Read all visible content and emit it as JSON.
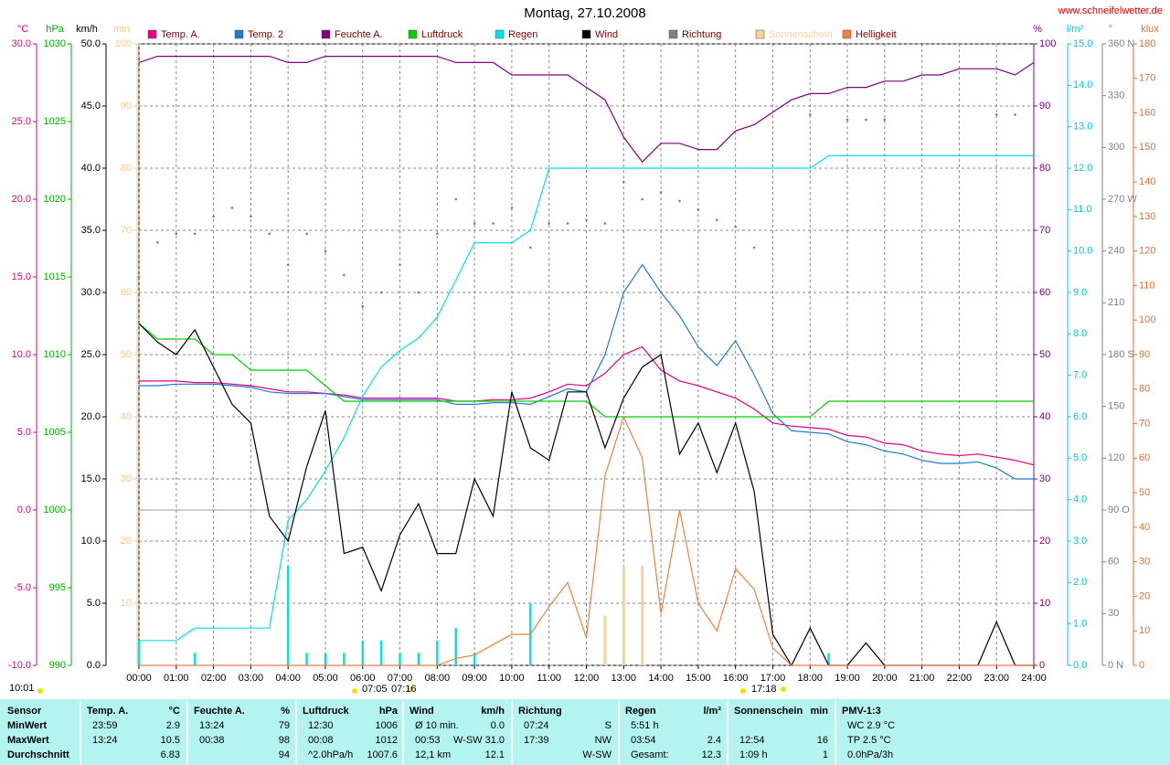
{
  "chart_data": {
    "type": "line",
    "title": "Montag, 27.10.2008",
    "source": "www.schneifelwetter.de",
    "annotations": [
      "10:01",
      "07:05",
      "07:16",
      "17:18"
    ],
    "grid": true,
    "xlim": [
      0,
      24
    ],
    "xticks": [
      {
        "value": 0,
        "label": "00:00"
      },
      {
        "value": 1,
        "label": "01:00"
      },
      {
        "value": 2,
        "label": "02:00"
      },
      {
        "value": 3,
        "label": "03:00"
      },
      {
        "value": 4,
        "label": "04:00"
      },
      {
        "value": 5,
        "label": "05:00"
      },
      {
        "value": 6,
        "label": "06:00"
      },
      {
        "value": 7,
        "label": "07:00"
      },
      {
        "value": 8,
        "label": "08:00"
      },
      {
        "value": 9,
        "label": "09:00"
      },
      {
        "value": 10,
        "label": "10:00"
      },
      {
        "value": 11,
        "label": "11:00"
      },
      {
        "value": 12,
        "label": "12:00"
      },
      {
        "value": 13,
        "label": "13:00"
      },
      {
        "value": 14,
        "label": "14:00"
      },
      {
        "value": 15,
        "label": "15:00"
      },
      {
        "value": 16,
        "label": "16:00"
      },
      {
        "value": 17,
        "label": "17:00"
      },
      {
        "value": 18,
        "label": "18:00"
      },
      {
        "value": 19,
        "label": "19:00"
      },
      {
        "value": 20,
        "label": "20:00"
      },
      {
        "value": 21,
        "label": "21:00"
      },
      {
        "value": 22,
        "label": "22:00"
      },
      {
        "value": 23,
        "label": "23:00"
      },
      {
        "value": 24,
        "label": "24:00"
      }
    ],
    "axes": [
      {
        "unit": "°C",
        "color": "#e6007e",
        "lim": [
          -10,
          30
        ],
        "ticks": [
          {
            "value": -10,
            "label": "-10.0"
          },
          {
            "value": -5,
            "label": "-5.0"
          },
          {
            "value": 0,
            "label": "0.0"
          },
          {
            "value": 5,
            "label": "5.0"
          },
          {
            "value": 10,
            "label": "10.0"
          },
          {
            "value": 15,
            "label": "15.0"
          },
          {
            "value": 20,
            "label": "20.0"
          },
          {
            "value": 25,
            "label": "25.0"
          },
          {
            "value": 30,
            "label": "30.0"
          }
        ]
      },
      {
        "unit": "hPa",
        "color": "#00b000",
        "lim": [
          990,
          1030
        ],
        "ticks": [
          990,
          995,
          1000,
          1005,
          1010,
          1015,
          1020,
          1025,
          1030
        ]
      },
      {
        "unit": "km/h",
        "color": "#000000",
        "lim": [
          0,
          50
        ],
        "ticks": [
          {
            "value": 0,
            "label": "0.0"
          },
          {
            "value": 5,
            "label": "5.0"
          },
          {
            "value": 10,
            "label": "10.0"
          },
          {
            "value": 15,
            "label": "15.0"
          },
          {
            "value": 20,
            "label": "20.0"
          },
          {
            "value": 25,
            "label": "25.0"
          },
          {
            "value": 30,
            "label": "30.0"
          },
          {
            "value": 35,
            "label": "35.0"
          },
          {
            "value": 40,
            "label": "40.0"
          },
          {
            "value": 45,
            "label": "45.0"
          },
          {
            "value": 50,
            "label": "50.0"
          }
        ]
      },
      {
        "unit": "min",
        "color": "#f5c890",
        "lim": [
          0,
          100
        ],
        "ticks": [
          10,
          20,
          30,
          40,
          50,
          60,
          70,
          80,
          90,
          100
        ]
      },
      {
        "unit": "%",
        "color": "#800080",
        "lim": [
          0,
          100
        ],
        "ticks": [
          0,
          10,
          20,
          30,
          40,
          50,
          60,
          70,
          80,
          90,
          100
        ]
      },
      {
        "unit": "l/m²",
        "color": "#00c8d8",
        "lim": [
          0,
          15
        ],
        "ticks": [
          {
            "value": 0,
            "label": "0.0"
          },
          {
            "value": 1,
            "label": "1.0"
          },
          {
            "value": 2,
            "label": "2.0"
          },
          {
            "value": 3,
            "label": "3.0"
          },
          {
            "value": 4,
            "label": "4.0"
          },
          {
            "value": 5,
            "label": "5.0"
          },
          {
            "value": 6,
            "label": "6.0"
          },
          {
            "value": 7,
            "label": "7.0"
          },
          {
            "value": 8,
            "label": "8.0"
          },
          {
            "value": 9,
            "label": "9.0"
          },
          {
            "value": 10,
            "label": "10.0"
          },
          {
            "value": 11,
            "label": "11.0"
          },
          {
            "value": 12,
            "label": "12.0"
          },
          {
            "value": 13,
            "label": "13.0"
          },
          {
            "value": 14,
            "label": "14.0"
          },
          {
            "value": 15,
            "label": "15.0"
          }
        ]
      },
      {
        "unit": "°",
        "color": "#808080",
        "lim": [
          0,
          360
        ],
        "ticks": [
          {
            "value": 0,
            "label": "0 N"
          },
          30,
          60,
          {
            "value": 90,
            "label": "90 O"
          },
          120,
          150,
          {
            "value": 180,
            "label": "180 S"
          },
          210,
          240,
          {
            "value": 270,
            "label": "270 W"
          },
          300,
          330,
          {
            "value": 360,
            "label": "360 N"
          }
        ]
      },
      {
        "unit": "klux",
        "color": "#e07030",
        "lim": [
          0,
          180
        ],
        "ticks": [
          0,
          10,
          20,
          30,
          40,
          50,
          60,
          70,
          80,
          90,
          100,
          110,
          120,
          130,
          140,
          150,
          160,
          170,
          180
        ]
      }
    ],
    "x": [
      0,
      0.5,
      1,
      1.5,
      2,
      2.5,
      3,
      3.5,
      4,
      4.5,
      5,
      5.5,
      6,
      6.5,
      7,
      7.5,
      8,
      8.5,
      9,
      9.5,
      10,
      10.5,
      11,
      11.5,
      12,
      12.5,
      13,
      13.5,
      14,
      14.5,
      15,
      15.5,
      16,
      16.5,
      17,
      17.5,
      18,
      18.5,
      19,
      19.5,
      20,
      20.5,
      21,
      21.5,
      22,
      22.5,
      23,
      23.5,
      24
    ],
    "series": [
      {
        "name": "Temp. A.",
        "color": "#e6007e",
        "axis": 0,
        "style": "line",
        "values": [
          8.3,
          8.3,
          8.3,
          8.2,
          8.2,
          8.1,
          8.0,
          7.8,
          7.6,
          7.6,
          7.5,
          7.4,
          7.2,
          7.2,
          7.2,
          7.2,
          7.2,
          7.0,
          7.0,
          7.1,
          7.1,
          7.2,
          7.6,
          8.1,
          8.0,
          8.8,
          10.0,
          10.5,
          9.0,
          8.3,
          8.0,
          7.6,
          7.2,
          6.5,
          5.6,
          5.4,
          5.3,
          5.2,
          4.8,
          4.7,
          4.3,
          4.2,
          3.8,
          3.6,
          3.5,
          3.6,
          3.4,
          3.2,
          2.9
        ]
      },
      {
        "name": "Temp. 2",
        "color": "#1e7ad6",
        "axis": 0,
        "style": "line",
        "values": [
          8.0,
          8.0,
          8.1,
          8.1,
          8.1,
          8.0,
          7.9,
          7.6,
          7.5,
          7.5,
          7.5,
          7.3,
          7.1,
          7.1,
          7.1,
          7.1,
          7.1,
          6.8,
          6.8,
          6.9,
          6.9,
          6.8,
          7.3,
          7.8,
          7.6,
          10.0,
          14.0,
          15.8,
          14.0,
          12.5,
          10.5,
          9.3,
          10.9,
          8.7,
          6.2,
          5.1,
          5.0,
          4.9,
          4.4,
          4.2,
          3.8,
          3.6,
          3.2,
          3.0,
          3.0,
          3.1,
          2.7,
          2.0,
          2.0
        ]
      },
      {
        "name": "Feuchte A.",
        "color": "#800080",
        "axis": 4,
        "style": "line",
        "values": [
          97,
          98,
          98,
          98,
          98,
          98,
          98,
          98,
          97,
          97,
          98,
          98,
          98,
          98,
          98,
          98,
          98,
          97,
          97,
          97,
          95,
          95,
          95,
          95,
          93,
          91,
          85,
          81,
          84,
          84,
          83,
          83,
          86,
          87,
          89,
          91,
          92,
          92,
          93,
          93,
          94,
          94,
          95,
          95,
          96,
          96,
          96,
          95,
          97
        ]
      },
      {
        "name": "Luftdruck",
        "color": "#00d000",
        "axis": 1,
        "style": "line",
        "values": [
          1012,
          1011,
          1011,
          1011,
          1010,
          1010,
          1009,
          1009,
          1009,
          1009,
          1008,
          1007,
          1007,
          1007,
          1007,
          1007,
          1007,
          1007,
          1007,
          1007,
          1007,
          1007,
          1007,
          1007,
          1007,
          1006,
          1006,
          1006,
          1006,
          1006,
          1006,
          1006,
          1006,
          1006,
          1006,
          1006,
          1006,
          1007,
          1007,
          1007,
          1007,
          1007,
          1007,
          1007,
          1007,
          1007,
          1007,
          1007,
          1007
        ]
      },
      {
        "name": "Regen",
        "color": "#00e0ea",
        "axis": 5,
        "style": "line",
        "values": [
          0.6,
          0.6,
          0.6,
          0.9,
          0.9,
          0.9,
          0.9,
          0.9,
          3.5,
          4.0,
          4.7,
          5.5,
          6.5,
          7.2,
          7.6,
          7.9,
          8.4,
          9.3,
          10.2,
          10.2,
          10.2,
          10.5,
          12.0,
          12.0,
          12.0,
          12.0,
          12.0,
          12.0,
          12.0,
          12.0,
          12.0,
          12.0,
          12.0,
          12.0,
          12.0,
          12.0,
          12.0,
          12.3,
          12.3,
          12.3,
          12.3,
          12.3,
          12.3,
          12.3,
          12.3,
          12.3,
          12.3,
          12.3,
          12.3
        ],
        "bar_values": [
          0.6,
          0,
          0,
          0.3,
          0,
          0,
          0,
          0,
          2.4,
          0.3,
          0.3,
          0.3,
          0.6,
          0.6,
          0.3,
          0.3,
          0.6,
          0.9,
          0.3,
          0,
          0,
          1.5,
          0,
          0,
          0,
          0,
          0,
          0,
          0,
          0,
          0,
          0,
          0,
          0,
          0,
          0,
          0,
          0.3,
          0,
          0,
          0,
          0,
          0,
          0,
          0,
          0,
          0,
          0,
          0
        ]
      },
      {
        "name": "Wind",
        "color": "#000000",
        "axis": 2,
        "style": "line",
        "values": [
          27.5,
          26,
          25,
          27,
          24,
          21,
          19.5,
          12,
          10,
          16,
          20.5,
          9,
          9.5,
          6,
          10.5,
          13,
          9,
          9,
          15,
          12,
          22,
          17.5,
          16.5,
          22,
          22,
          17.5,
          21.5,
          24,
          25,
          17,
          19.5,
          15.5,
          19.5,
          14,
          2.5,
          0,
          3,
          0,
          0,
          1.8,
          0,
          0,
          0,
          0,
          0,
          0,
          3.5,
          0,
          0
        ]
      },
      {
        "name": "Richtung",
        "color": "#808080",
        "axis": 6,
        "style": "points",
        "values": [
          225,
          245,
          250,
          250,
          260,
          265,
          260,
          250,
          232,
          250,
          240,
          226,
          208,
          216,
          232,
          216,
          250,
          270,
          256,
          256,
          265,
          242,
          256,
          256,
          258,
          256,
          280,
          270,
          274,
          269,
          264,
          258,
          254,
          242,
          null,
          null,
          319,
          null,
          316,
          316,
          316,
          null,
          null,
          null,
          null,
          null,
          319,
          319,
          null
        ]
      },
      {
        "name": "Sonnenschein",
        "color": "#f9d29a",
        "axis": 3,
        "style": "bars",
        "values": [
          0,
          0,
          0,
          0,
          0,
          0,
          0,
          0,
          0,
          0,
          0,
          0,
          0,
          0,
          0,
          0,
          0,
          0,
          0,
          0,
          0,
          0,
          0,
          0,
          0,
          8,
          16,
          16,
          0,
          0,
          0,
          0,
          0,
          0,
          0,
          0,
          0,
          0,
          0,
          0,
          0,
          0,
          0,
          0,
          0,
          0,
          0,
          0,
          0
        ]
      },
      {
        "name": "Helligkeit",
        "color": "#f08040",
        "axis": 7,
        "style": "line",
        "values": [
          0,
          0,
          0,
          0,
          0,
          0,
          0,
          0,
          0,
          0,
          0,
          0,
          0,
          0,
          0,
          0,
          0,
          2,
          3,
          6,
          9,
          9,
          17,
          24,
          8,
          55,
          72,
          60,
          15,
          45,
          18,
          10,
          28,
          22,
          5,
          0,
          0,
          0,
          0,
          0,
          0,
          0,
          0,
          0,
          0,
          0,
          0,
          0,
          0
        ]
      }
    ]
  },
  "table": {
    "row_labels": [
      "Sensor",
      "MinWert",
      "MaxWert",
      "Durchschnitt"
    ],
    "groups": [
      {
        "name": "Temp. A.",
        "unit": "°C",
        "cells": [
          [
            "23:59",
            "2.9"
          ],
          [
            "13:24",
            "10.5"
          ],
          [
            null,
            "6.83"
          ]
        ]
      },
      {
        "name": "Feuchte A.",
        "unit": "%",
        "cells": [
          [
            "13:24",
            "79"
          ],
          [
            "00:38",
            "98"
          ],
          [
            null,
            "94"
          ]
        ]
      },
      {
        "name": "Luftdruck",
        "unit": "hPa",
        "cells": [
          [
            "12:30",
            "1006"
          ],
          [
            "00:08",
            "1012"
          ],
          [
            "^2.0hPa/h",
            "1007.6"
          ]
        ]
      },
      {
        "name": "Wind",
        "unit": "km/h",
        "cells": [
          [
            "Ø 10 min.",
            "0.0"
          ],
          [
            "00:53",
            "W-SW 31.0"
          ],
          [
            "12,1 km",
            "12.1"
          ]
        ]
      },
      {
        "name": "Richtung",
        "cells": [
          [
            "07:24",
            "S"
          ],
          [
            "17:39",
            "NW"
          ],
          [
            null,
            "W-SW"
          ]
        ]
      },
      {
        "name": "Regen",
        "unit": "l/m²",
        "cells": [
          [
            "5:51 h",
            null
          ],
          [
            "03:54",
            "2.4"
          ],
          [
            "Gesamt:",
            "12.3"
          ]
        ]
      },
      {
        "name": "Sonnenschein",
        "unit": "min",
        "cells": [
          [
            null,
            null
          ],
          [
            "12:54",
            "16"
          ],
          [
            "1:09 h",
            "1"
          ]
        ]
      },
      {
        "name": "PMV-1:3",
        "cells": [
          [
            "WC 2.9 °C",
            null
          ],
          [
            "TP 2.5 °C",
            null
          ],
          [
            "0.0hPa/3h",
            null
          ]
        ]
      }
    ]
  }
}
